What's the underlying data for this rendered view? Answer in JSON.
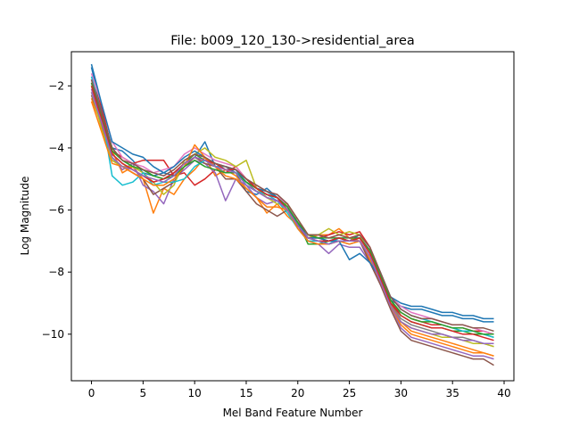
{
  "chart_data": {
    "type": "line",
    "title": "File: b009_120_130->residential_area",
    "xlabel": "Mel Band Feature Number",
    "ylabel": "Log Magnitude",
    "xlim": [
      -1.95,
      40.95
    ],
    "ylim": [
      -11.5,
      -0.9
    ],
    "xticks": [
      0,
      5,
      10,
      15,
      20,
      25,
      30,
      35,
      40
    ],
    "yticks": [
      -10,
      -8,
      -6,
      -4,
      -2
    ],
    "grid": false,
    "legend": "none",
    "colors": [
      "#1f77b4",
      "#ff7f0e",
      "#2ca02c",
      "#d62728",
      "#9467bd",
      "#8c564b",
      "#e377c2",
      "#7f7f7f",
      "#bcbd22",
      "#17becf"
    ],
    "x": [
      0,
      1,
      2,
      3,
      4,
      5,
      6,
      7,
      8,
      9,
      10,
      11,
      12,
      13,
      14,
      15,
      16,
      17,
      18,
      19,
      20,
      21,
      22,
      23,
      24,
      25,
      26,
      27,
      28,
      29,
      30,
      31,
      32,
      33,
      34,
      35,
      36,
      37,
      38,
      39
    ],
    "series": [
      {
        "values": [
          -1.4,
          -2.8,
          -4.0,
          -4.1,
          -4.4,
          -4.8,
          -4.9,
          -4.8,
          -4.9,
          -4.5,
          -4.3,
          -3.8,
          -4.6,
          -4.6,
          -4.8,
          -5.4,
          -5.5,
          -5.3,
          -5.6,
          -6.0,
          -6.3,
          -6.8,
          -6.9,
          -7.0,
          -6.9,
          -7.0,
          -6.8,
          -7.4,
          -8.2,
          -8.9,
          -9.1,
          -9.2,
          -9.2,
          -9.3,
          -9.4,
          -9.4,
          -9.5,
          -9.5,
          -9.6,
          -9.6
        ]
      },
      {
        "values": [
          -2.4,
          -3.3,
          -4.1,
          -4.8,
          -4.6,
          -5.0,
          -6.1,
          -5.3,
          -5.5,
          -5.0,
          -4.7,
          -4.3,
          -4.9,
          -4.7,
          -4.9,
          -5.3,
          -5.6,
          -6.1,
          -5.8,
          -6.2,
          -6.5,
          -6.9,
          -6.8,
          -6.8,
          -6.6,
          -6.9,
          -7.0,
          -7.6,
          -8.3,
          -9.0,
          -9.6,
          -9.9,
          -10.0,
          -10.1,
          -10.2,
          -10.3,
          -10.4,
          -10.5,
          -10.6,
          -10.7
        ]
      },
      {
        "values": [
          -2.0,
          -3.0,
          -4.0,
          -4.4,
          -4.6,
          -4.7,
          -4.9,
          -5.0,
          -4.8,
          -4.5,
          -4.2,
          -4.4,
          -4.5,
          -4.6,
          -4.7,
          -5.0,
          -5.3,
          -5.4,
          -5.6,
          -5.9,
          -6.4,
          -7.1,
          -7.1,
          -7.0,
          -6.9,
          -6.9,
          -6.9,
          -7.3,
          -8.1,
          -8.9,
          -9.4,
          -9.6,
          -9.7,
          -9.8,
          -9.8,
          -9.9,
          -9.9,
          -10.0,
          -10.0,
          -10.1
        ]
      },
      {
        "values": [
          -1.8,
          -2.7,
          -4.1,
          -4.3,
          -4.5,
          -4.4,
          -4.4,
          -4.4,
          -4.9,
          -4.8,
          -5.2,
          -5.0,
          -4.7,
          -4.8,
          -4.6,
          -5.0,
          -5.3,
          -5.6,
          -5.7,
          -5.8,
          -6.5,
          -6.9,
          -6.9,
          -6.8,
          -6.7,
          -6.8,
          -6.7,
          -7.2,
          -8.2,
          -9.0,
          -9.3,
          -9.5,
          -9.6,
          -9.7,
          -9.7,
          -9.8,
          -9.8,
          -9.9,
          -9.9,
          -10.0
        ]
      },
      {
        "values": [
          -2.1,
          -3.2,
          -4.3,
          -4.7,
          -4.5,
          -5.2,
          -5.4,
          -5.8,
          -5.0,
          -4.7,
          -4.4,
          -4.5,
          -4.8,
          -5.7,
          -5.0,
          -5.2,
          -5.6,
          -5.8,
          -5.7,
          -5.8,
          -6.6,
          -7.0,
          -7.1,
          -7.4,
          -7.1,
          -7.2,
          -7.2,
          -7.7,
          -8.4,
          -9.1,
          -9.8,
          -10.1,
          -10.2,
          -10.3,
          -10.4,
          -10.5,
          -10.6,
          -10.7,
          -10.7,
          -10.8
        ]
      },
      {
        "values": [
          -2.3,
          -3.3,
          -4.4,
          -4.6,
          -4.8,
          -5.0,
          -5.5,
          -5.3,
          -5.1,
          -4.6,
          -4.3,
          -4.5,
          -4.6,
          -5.0,
          -5.0,
          -5.4,
          -5.8,
          -6.0,
          -6.2,
          -6.0,
          -6.5,
          -7.0,
          -7.0,
          -7.1,
          -7.0,
          -7.1,
          -7.0,
          -7.7,
          -8.4,
          -9.2,
          -9.9,
          -10.2,
          -10.3,
          -10.4,
          -10.5,
          -10.6,
          -10.7,
          -10.8,
          -10.8,
          -11.0
        ]
      },
      {
        "values": [
          -1.6,
          -2.6,
          -3.8,
          -4.3,
          -4.5,
          -4.6,
          -4.8,
          -4.7,
          -4.6,
          -4.2,
          -4.0,
          -4.2,
          -4.4,
          -4.5,
          -4.6,
          -5.0,
          -5.2,
          -5.4,
          -5.5,
          -5.9,
          -6.3,
          -6.8,
          -6.8,
          -6.9,
          -6.8,
          -6.9,
          -6.8,
          -7.3,
          -8.1,
          -8.8,
          -9.1,
          -9.3,
          -9.4,
          -9.5,
          -9.6,
          -9.7,
          -9.7,
          -9.8,
          -9.9,
          -10.0
        ]
      },
      {
        "values": [
          -1.9,
          -3.1,
          -4.2,
          -4.5,
          -4.7,
          -4.9,
          -5.1,
          -5.0,
          -4.8,
          -4.5,
          -4.3,
          -4.4,
          -4.6,
          -4.8,
          -4.8,
          -5.1,
          -5.4,
          -5.5,
          -5.6,
          -5.9,
          -6.5,
          -6.9,
          -6.9,
          -7.0,
          -6.9,
          -7.0,
          -6.9,
          -7.4,
          -8.2,
          -9.0,
          -9.5,
          -9.7,
          -9.8,
          -9.9,
          -10.0,
          -10.1,
          -10.1,
          -10.2,
          -10.3,
          -10.4
        ]
      },
      {
        "values": [
          -2.2,
          -3.4,
          -4.4,
          -4.6,
          -4.6,
          -4.8,
          -5.1,
          -5.5,
          -5.2,
          -4.4,
          -4.2,
          -4.0,
          -4.3,
          -4.4,
          -4.6,
          -4.4,
          -5.3,
          -5.6,
          -5.8,
          -5.8,
          -6.3,
          -6.8,
          -6.8,
          -6.6,
          -6.8,
          -6.7,
          -6.8,
          -7.4,
          -8.3,
          -9.1,
          -9.6,
          -9.8,
          -9.9,
          -10.0,
          -10.1,
          -10.1,
          -10.2,
          -10.3,
          -10.3,
          -10.4
        ]
      },
      {
        "values": [
          -1.7,
          -2.9,
          -4.9,
          -5.2,
          -5.1,
          -4.8,
          -5.2,
          -5.1,
          -5.1,
          -5.0,
          -4.6,
          -4.4,
          -4.6,
          -4.6,
          -4.7,
          -5.2,
          -5.4,
          -5.5,
          -5.7,
          -6.1,
          -6.6,
          -7.0,
          -7.0,
          -7.1,
          -6.9,
          -7.0,
          -6.9,
          -7.3,
          -8.0,
          -8.8,
          -9.2,
          -9.4,
          -9.5,
          -9.6,
          -9.7,
          -9.8,
          -9.9,
          -9.9,
          -10.0,
          -10.1
        ]
      },
      {
        "values": [
          -1.3,
          -2.6,
          -3.8,
          -4.0,
          -4.2,
          -4.3,
          -4.6,
          -4.8,
          -4.6,
          -4.3,
          -4.1,
          -4.3,
          -4.5,
          -4.6,
          -4.7,
          -5.1,
          -5.3,
          -5.4,
          -5.6,
          -6.0,
          -6.4,
          -6.9,
          -6.9,
          -7.0,
          -7.0,
          -7.6,
          -7.4,
          -7.7,
          -8.2,
          -8.8,
          -9.0,
          -9.1,
          -9.1,
          -9.2,
          -9.3,
          -9.3,
          -9.4,
          -9.4,
          -9.5,
          -9.5
        ]
      },
      {
        "values": [
          -2.5,
          -3.5,
          -4.5,
          -4.6,
          -4.8,
          -5.0,
          -5.2,
          -5.2,
          -5.0,
          -4.6,
          -3.9,
          -4.3,
          -4.6,
          -4.9,
          -5.0,
          -5.3,
          -5.6,
          -5.9,
          -5.9,
          -6.0,
          -6.6,
          -7.0,
          -7.1,
          -7.1,
          -7.0,
          -7.1,
          -7.0,
          -7.5,
          -8.3,
          -9.1,
          -9.7,
          -10.0,
          -10.1,
          -10.2,
          -10.3,
          -10.4,
          -10.5,
          -10.6,
          -10.6,
          -10.7
        ]
      },
      {
        "values": [
          -1.9,
          -3.0,
          -4.1,
          -4.4,
          -4.6,
          -4.7,
          -4.9,
          -5.0,
          -4.9,
          -4.6,
          -4.4,
          -4.6,
          -4.7,
          -4.8,
          -4.8,
          -5.1,
          -5.3,
          -5.5,
          -5.6,
          -5.9,
          -6.4,
          -6.8,
          -6.9,
          -6.9,
          -6.9,
          -7.0,
          -6.9,
          -7.3,
          -8.1,
          -8.9,
          -9.3,
          -9.5,
          -9.6,
          -9.6,
          -9.7,
          -9.8,
          -9.8,
          -9.9,
          -10.0,
          -10.0
        ]
      },
      {
        "values": [
          -2.0,
          -3.1,
          -4.2,
          -4.5,
          -4.7,
          -4.9,
          -5.1,
          -5.0,
          -4.8,
          -4.5,
          -4.3,
          -4.4,
          -4.5,
          -4.7,
          -4.7,
          -5.0,
          -5.3,
          -5.5,
          -5.6,
          -6.0,
          -6.5,
          -6.9,
          -7.0,
          -7.0,
          -6.9,
          -7.0,
          -6.9,
          -7.4,
          -8.2,
          -9.0,
          -9.4,
          -9.6,
          -9.7,
          -9.8,
          -9.8,
          -9.9,
          -10.0,
          -10.0,
          -10.1,
          -10.2
        ]
      },
      {
        "values": [
          -2.2,
          -3.2,
          -4.3,
          -4.6,
          -4.7,
          -4.9,
          -5.0,
          -5.1,
          -4.9,
          -4.5,
          -4.3,
          -4.4,
          -4.6,
          -4.7,
          -4.8,
          -5.2,
          -5.4,
          -5.6,
          -5.7,
          -6.0,
          -6.5,
          -6.9,
          -7.0,
          -7.1,
          -7.0,
          -7.0,
          -7.0,
          -7.5,
          -8.3,
          -9.1,
          -9.6,
          -9.8,
          -9.9,
          -10.0,
          -10.0,
          -10.1,
          -10.2,
          -10.2,
          -10.3,
          -10.3
        ]
      },
      {
        "values": [
          -1.8,
          -2.9,
          -4.0,
          -4.4,
          -4.5,
          -4.7,
          -4.8,
          -4.9,
          -4.7,
          -4.4,
          -4.2,
          -4.3,
          -4.5,
          -4.6,
          -4.7,
          -5.0,
          -5.2,
          -5.4,
          -5.5,
          -5.8,
          -6.3,
          -6.8,
          -6.8,
          -6.9,
          -6.8,
          -6.9,
          -6.8,
          -7.2,
          -8.0,
          -8.8,
          -9.2,
          -9.4,
          -9.5,
          -9.5,
          -9.6,
          -9.7,
          -9.7,
          -9.8,
          -9.8,
          -9.9
        ]
      }
    ]
  }
}
